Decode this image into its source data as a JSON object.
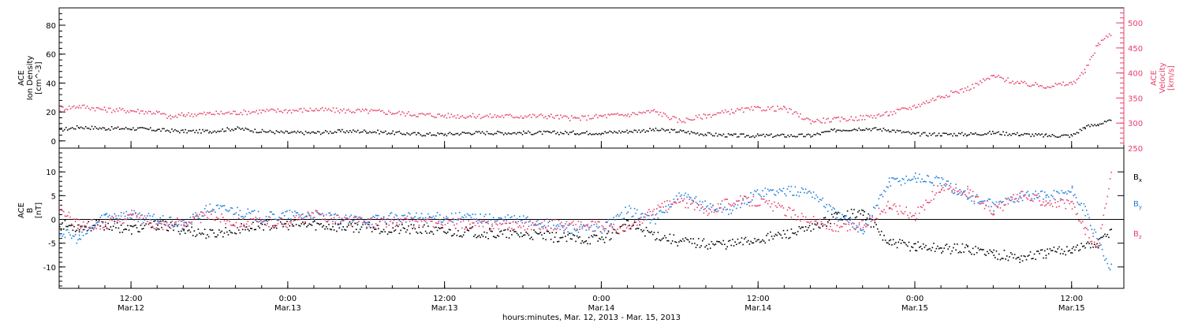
{
  "figure": {
    "xlabel": "hours:minutes, Mar. 12, 2013 - Mar. 15, 2013",
    "colors": {
      "axis": "#000000",
      "bx": "#000000",
      "by": "#1f7fdf",
      "bz": "#e8406a",
      "velocity": "#e8406a",
      "density": "#000000"
    }
  },
  "chart_data": [
    {
      "type": "scatter",
      "panel": "top",
      "ylabel_left": [
        "ACE",
        "Ion Density",
        "[cm^-3]"
      ],
      "ylabel_right": [
        "ACE",
        "Velocity",
        "[km/s]"
      ],
      "x_unit": "hours since Mar. 12, 2013 00:00",
      "xlim": [
        6.5,
        88
      ],
      "ylim_left": [
        -5,
        92
      ],
      "ylim_right": [
        250,
        530
      ],
      "yticks_left": [
        "0",
        "20",
        "40",
        "60",
        "80"
      ],
      "yticks_right": [
        "250",
        "300",
        "350",
        "400",
        "450",
        "500"
      ],
      "series": [
        {
          "key": "density",
          "axis": "left",
          "x": [
            6.5,
            8,
            10,
            12,
            14,
            16,
            18,
            20,
            22,
            24,
            26,
            28,
            30,
            32,
            34,
            36,
            38,
            40,
            42,
            44,
            46,
            48,
            50,
            52,
            54,
            56,
            58,
            60,
            62,
            64,
            66,
            68,
            70,
            72,
            74,
            76,
            78,
            80,
            82,
            84,
            85,
            86,
            87
          ],
          "values": [
            8,
            10,
            9,
            9,
            8,
            7,
            7,
            9,
            7,
            6,
            6,
            7,
            7,
            6,
            5,
            5,
            6,
            6,
            6,
            6,
            6,
            6,
            7,
            8,
            7,
            5,
            4,
            4,
            4,
            4,
            8,
            9,
            8,
            5,
            5,
            5,
            6,
            5,
            4,
            4,
            10,
            12,
            14
          ]
        },
        {
          "key": "velocity",
          "axis": "right",
          "x": [
            6.5,
            8,
            10,
            12,
            14,
            15,
            16,
            18,
            20,
            22,
            24,
            26,
            28,
            30,
            32,
            34,
            36,
            38,
            40,
            42,
            44,
            46,
            48,
            50,
            52,
            54,
            56,
            58,
            60,
            62,
            64,
            66,
            68,
            70,
            72,
            74,
            76,
            78,
            80,
            82,
            84,
            85,
            86,
            87
          ],
          "values": [
            330,
            335,
            328,
            326,
            322,
            312,
            318,
            320,
            322,
            325,
            326,
            328,
            326,
            325,
            322,
            318,
            316,
            315,
            315,
            315,
            315,
            310,
            315,
            318,
            325,
            305,
            316,
            325,
            330,
            330,
            305,
            308,
            312,
            320,
            335,
            355,
            370,
            395,
            380,
            375,
            380,
            405,
            460,
            480
          ]
        }
      ]
    },
    {
      "type": "scatter",
      "panel": "bottom",
      "ylabel_left": [
        "ACE",
        "B",
        "[nT]"
      ],
      "x_unit": "hours since Mar. 12, 2013 00:00",
      "xlim": [
        6.5,
        88
      ],
      "ylim": [
        -14.5,
        15
      ],
      "yticks": [
        "-10",
        "-5",
        "0",
        "5",
        "10"
      ],
      "zero_line": true,
      "series": [
        {
          "name": "Bx",
          "legend_main": "B",
          "legend_sub": "x",
          "x": [
            6.5,
            8,
            10,
            12,
            14,
            16,
            18,
            20,
            22,
            24,
            26,
            28,
            30,
            32,
            34,
            36,
            38,
            40,
            42,
            44,
            46,
            48,
            50,
            52,
            54,
            56,
            58,
            60,
            62,
            64,
            66,
            68,
            70,
            72,
            74,
            76,
            78,
            80,
            82,
            84,
            86,
            87
          ],
          "values": [
            -1,
            -1.5,
            -1,
            -2,
            -1,
            -2,
            -3,
            -2,
            -1,
            -1,
            -1,
            -1.5,
            -1.5,
            -2,
            -2,
            -2.5,
            -2.5,
            -3,
            -3,
            -3.5,
            -4,
            -4,
            -1,
            -3,
            -4.5,
            -5,
            -5,
            -4,
            -3,
            -2,
            1,
            1.5,
            -5,
            -5.5,
            -6,
            -6,
            -7,
            -8,
            -7,
            -6,
            -5,
            -2
          ]
        },
        {
          "name": "By",
          "legend_main": "B",
          "legend_sub": "y",
          "x": [
            6.5,
            8,
            10,
            12,
            14,
            16,
            18,
            20,
            22,
            24,
            26,
            28,
            30,
            32,
            34,
            36,
            38,
            40,
            42,
            44,
            46,
            48,
            50,
            52,
            54,
            56,
            58,
            60,
            62,
            64,
            66,
            68,
            70,
            72,
            74,
            76,
            78,
            80,
            82,
            84,
            85,
            86,
            87
          ],
          "values": [
            -2.5,
            -4,
            1,
            1,
            0,
            -1,
            2.5,
            2,
            0.5,
            1,
            1,
            0,
            0,
            0.5,
            0.5,
            0.5,
            0.5,
            0,
            0,
            -1,
            -2,
            -2,
            2,
            0,
            5,
            3,
            2,
            6,
            6,
            6,
            1,
            -2,
            8,
            9,
            8,
            5,
            3,
            5,
            5,
            6,
            2,
            -5,
            -10
          ]
        },
        {
          "name": "Bz",
          "legend_main": "B",
          "legend_sub": "z",
          "x": [
            6.5,
            8,
            10,
            12,
            14,
            16,
            18,
            20,
            22,
            24,
            26,
            28,
            30,
            32,
            34,
            36,
            38,
            40,
            42,
            44,
            46,
            48,
            50,
            52,
            54,
            56,
            58,
            60,
            62,
            64,
            66,
            68,
            70,
            72,
            74,
            76,
            78,
            80,
            82,
            84,
            85,
            86,
            87
          ],
          "values": [
            2,
            -1,
            -1,
            1,
            -1,
            -0.5,
            1,
            -0.5,
            -0.5,
            -0.5,
            1,
            0,
            -0.5,
            -0.5,
            -0.5,
            -0.5,
            -1,
            -1,
            -1,
            -1,
            -1,
            -1.5,
            -2,
            2,
            4,
            2,
            4,
            4,
            2,
            0,
            -2,
            -1,
            3,
            1,
            7,
            6,
            2,
            5,
            4,
            3,
            -2,
            -6,
            10
          ]
        }
      ]
    }
  ],
  "x_ticks": [
    {
      "hour": 12,
      "time": "12:00",
      "date": "Mar.12"
    },
    {
      "hour": 24,
      "time": "0:00",
      "date": "Mar.13"
    },
    {
      "hour": 36,
      "time": "12:00",
      "date": "Mar.13"
    },
    {
      "hour": 48,
      "time": "0:00",
      "date": "Mar.14"
    },
    {
      "hour": 60,
      "time": "12:00",
      "date": "Mar.14"
    },
    {
      "hour": 72,
      "time": "0:00",
      "date": "Mar.15"
    },
    {
      "hour": 84,
      "time": "12:00",
      "date": "Mar.15"
    }
  ]
}
